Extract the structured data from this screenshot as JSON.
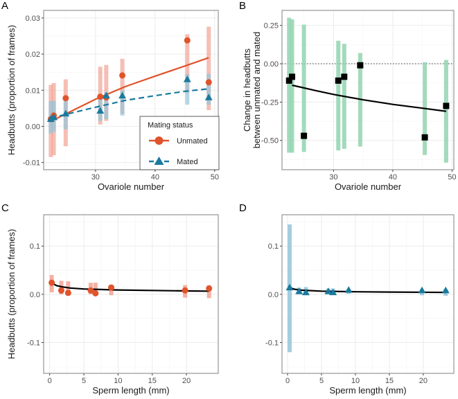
{
  "colors": {
    "unmated": "#e0532b",
    "unmated_ci": "#f2a394",
    "mated": "#1a7a9e",
    "mated_ci": "#94c4d8",
    "diff_ci": "#92d3b0",
    "fit": "#000000",
    "grid": "#ebebeb",
    "border": "#7f7f7f"
  },
  "chart_data": [
    {
      "panel": "A",
      "type": "scatter",
      "xlabel": "Ovariole number",
      "ylabel": "Headbutts (proportion of frames)",
      "xlim": [
        21.3,
        50.6
      ],
      "ylim": [
        -0.012,
        0.0321
      ],
      "xticks": [
        30,
        40,
        50
      ],
      "xtick_labels": [
        "30",
        "40",
        "50"
      ],
      "yticks": [
        -0.01,
        0,
        0.01,
        0.02,
        0.03
      ],
      "ytick_labels": [
        "-0.01",
        "0.00",
        "0.01",
        "0.02",
        "0.03"
      ],
      "grid": true,
      "legend": {
        "title": "Mating status",
        "placement": "bottom-right"
      },
      "series": [
        {
          "name": "Unmated",
          "marker": "circle",
          "line": "solid",
          "color_key": "unmated",
          "points": [
            [
              22.5,
              0.002,
              -0.0085,
              0.0115
            ],
            [
              23.0,
              0.003,
              -0.008,
              0.012
            ],
            [
              25.0,
              0.0078,
              -0.0055,
              0.013
            ],
            [
              30.8,
              0.0082,
              0.0005,
              0.0165
            ],
            [
              31.8,
              0.008,
              0.0015,
              0.017
            ],
            [
              34.5,
              0.0141,
              0.0035,
              0.0187
            ],
            [
              45.4,
              0.0238,
              0.0092,
              0.0255
            ],
            [
              49.0,
              0.0122,
              0.0045,
              0.0276
            ]
          ],
          "fit": [
            [
              23,
              0.0018
            ],
            [
              30,
              0.0075
            ],
            [
              35,
              0.011
            ],
            [
              40,
              0.0139
            ],
            [
              45,
              0.0167
            ],
            [
              49,
              0.019
            ]
          ]
        },
        {
          "name": "Mated",
          "marker": "triangle",
          "line": "dashed",
          "color_key": "mated",
          "points": [
            [
              22.5,
              0.002,
              -0.002,
              0.007
            ],
            [
              23.0,
              0.0025,
              -0.0015,
              0.007
            ],
            [
              25.0,
              0.0035,
              -0.0008,
              0.007
            ],
            [
              30.8,
              0.0043,
              0.0015,
              0.009
            ],
            [
              31.8,
              0.0085,
              0.002,
              0.0095
            ],
            [
              34.5,
              0.0085,
              0.003,
              0.01
            ],
            [
              45.4,
              0.013,
              0.006,
              0.0145
            ],
            [
              49.0,
              0.008,
              0.006,
              0.0145
            ]
          ],
          "fit": [
            [
              22.5,
              0.0023
            ],
            [
              30,
              0.0053
            ],
            [
              35,
              0.0072
            ],
            [
              40,
              0.0085
            ],
            [
              45,
              0.0097
            ],
            [
              49,
              0.0104
            ]
          ]
        }
      ]
    },
    {
      "panel": "B",
      "type": "scatter",
      "xlabel": "Ovariole number",
      "ylabel": "Change in headbutts",
      "ylabel2": "between unmated and mated",
      "xlim": [
        21.3,
        50.3
      ],
      "ylim": [
        -0.691,
        0.348
      ],
      "xticks": [
        30,
        40,
        50
      ],
      "xtick_labels": [
        "30",
        "40",
        "50"
      ],
      "yticks": [
        -0.5,
        -0.25,
        0,
        0.25
      ],
      "ytick_labels": [
        "-0.50",
        "-0.25",
        "0.00",
        "0.25"
      ],
      "grid": true,
      "reference_line": 0,
      "series": [
        {
          "marker": "square",
          "color_key": "fit",
          "ci_color_key": "diff_ci",
          "points": [
            [
              22.5,
              -0.11,
              -0.58,
              0.3
            ],
            [
              23.0,
              -0.085,
              -0.58,
              0.29
            ],
            [
              25.0,
              -0.47,
              -0.575,
              0.255
            ],
            [
              30.8,
              -0.11,
              -0.565,
              0.15
            ],
            [
              31.8,
              -0.085,
              -0.555,
              0.13
            ],
            [
              34.5,
              -0.01,
              -0.54,
              0.07
            ],
            [
              45.4,
              -0.48,
              -0.595,
              0.01
            ],
            [
              49.0,
              -0.275,
              -0.645,
              0.025
            ]
          ],
          "fit": [
            [
              23,
              -0.14
            ],
            [
              27,
              -0.175
            ],
            [
              30,
              -0.2
            ],
            [
              35,
              -0.235
            ],
            [
              40,
              -0.265
            ],
            [
              45,
              -0.29
            ],
            [
              49,
              -0.31
            ]
          ]
        }
      ]
    },
    {
      "panel": "C",
      "type": "scatter",
      "xlabel": "Sperm length (mm)",
      "ylabel": "Headbutts (proportion of frames)",
      "xlim": [
        -0.88,
        24.65
      ],
      "ylim": [
        -0.164,
        0.165
      ],
      "xticks": [
        0,
        5,
        10,
        15,
        20
      ],
      "xtick_labels": [
        "0",
        "5",
        "10",
        "15",
        "20"
      ],
      "yticks": [
        -0.1,
        0,
        0.1
      ],
      "ytick_labels": [
        "-0.1",
        "0.0",
        "0.1"
      ],
      "grid": true,
      "series": [
        {
          "marker": "circle",
          "color_key": "unmated",
          "ci_color_key": "unmated_ci",
          "points": [
            [
              0.3,
              0.024,
              0.004,
              0.04
            ],
            [
              1.7,
              0.008,
              0,
              0.028
            ],
            [
              2.7,
              0.003,
              0,
              0.027
            ],
            [
              6.0,
              0.008,
              0,
              0.024
            ],
            [
              6.7,
              0.002,
              0,
              0.024
            ],
            [
              9.0,
              0.014,
              -0.002,
              0.02
            ],
            [
              19.8,
              0.008,
              -0.007,
              0.019
            ],
            [
              23.3,
              0.012,
              -0.008,
              0.019
            ]
          ],
          "fit": [
            [
              0.5,
              0.022
            ],
            [
              1,
              0.018
            ],
            [
              2,
              0.015
            ],
            [
              3,
              0.013
            ],
            [
              5,
              0.011
            ],
            [
              10,
              0.009
            ],
            [
              15,
              0.008
            ],
            [
              20,
              0.007
            ],
            [
              23.3,
              0.0065
            ]
          ]
        }
      ]
    },
    {
      "panel": "D",
      "type": "scatter",
      "xlabel": "Sperm length (mm)",
      "ylabel": "",
      "xlim": [
        -0.82,
        24.5
      ],
      "ylim": [
        -0.164,
        0.165
      ],
      "xticks": [
        0,
        5,
        10,
        15,
        20
      ],
      "xtick_labels": [
        "0",
        "5",
        "10",
        "15",
        "20"
      ],
      "yticks": [
        -0.1,
        0,
        0.1
      ],
      "ytick_labels": [
        "-0.1",
        "0.0",
        "0.1"
      ],
      "grid": true,
      "series": [
        {
          "marker": "triangle",
          "color_key": "mated",
          "ci_color_key": "mated_ci",
          "points": [
            [
              0.3,
              0.014,
              -0.12,
              0.145
            ],
            [
              1.7,
              0.006,
              0,
              0.014
            ],
            [
              2.7,
              0.004,
              -0.002,
              0.015
            ],
            [
              6.0,
              0.006,
              0,
              0.012
            ],
            [
              6.7,
              0.004,
              0,
              0.012
            ],
            [
              9.0,
              0.009,
              0.001,
              0.01
            ],
            [
              19.8,
              0.008,
              -0.002,
              0.01
            ],
            [
              23.3,
              0.008,
              -0.003,
              0.01
            ]
          ],
          "fit": [
            [
              0.5,
              0.013
            ],
            [
              1,
              0.0105
            ],
            [
              2,
              0.0085
            ],
            [
              5,
              0.0065
            ],
            [
              10,
              0.0052
            ],
            [
              15,
              0.0046
            ],
            [
              23.3,
              0.004
            ]
          ]
        }
      ]
    }
  ]
}
